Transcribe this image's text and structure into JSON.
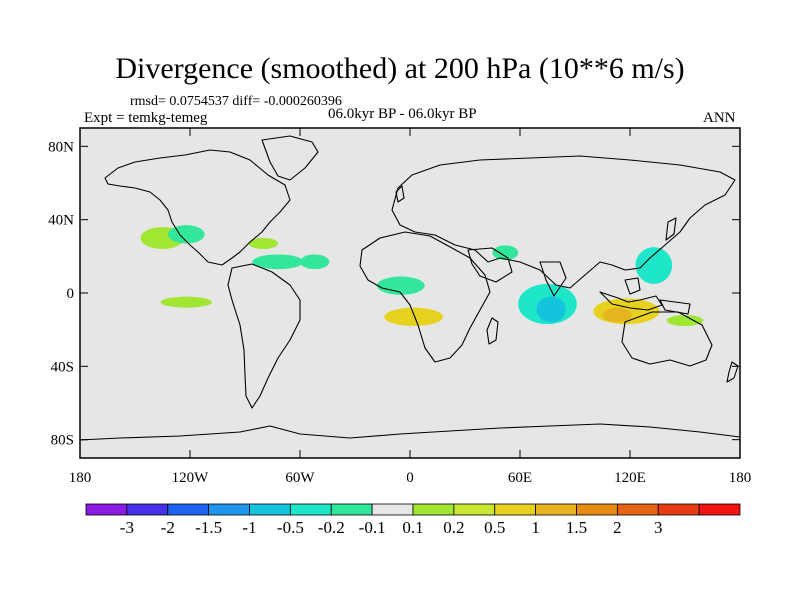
{
  "title": "Divergence (smoothed) at 200 hPa (10**6 m/s)",
  "stats": "rmsd= 0.0754537 diff= -0.000260396",
  "experiment": "Expt = temkg-temeg",
  "period": "06.0kyr BP - 06.0kyr BP",
  "season": "ANN",
  "axes": {
    "lat_ticks": [
      {
        "value": 80,
        "label": "80N"
      },
      {
        "value": 40,
        "label": "40N"
      },
      {
        "value": 0,
        "label": "0"
      },
      {
        "value": -40,
        "label": "40S"
      },
      {
        "value": -80,
        "label": "80S"
      }
    ],
    "lon_ticks": [
      {
        "value": -180,
        "label": "180"
      },
      {
        "value": -120,
        "label": "120W"
      },
      {
        "value": -60,
        "label": "60W"
      },
      {
        "value": 0,
        "label": "0"
      },
      {
        "value": 60,
        "label": "60E"
      },
      {
        "value": 120,
        "label": "120E"
      },
      {
        "value": 180,
        "label": "180"
      }
    ]
  },
  "colorbar": {
    "colors": [
      "#8a1be0",
      "#4632e6",
      "#1e64f0",
      "#1e96f0",
      "#14c3dc",
      "#1ee6c8",
      "#32e69b",
      "#e6e6e6",
      "#a0e632",
      "#c8e632",
      "#e6d21e",
      "#e6b41e",
      "#e68c14",
      "#e66414",
      "#e63c14",
      "#f01414"
    ],
    "labels": [
      "-3",
      "-2",
      "-1.5",
      "-1",
      "-0.5",
      "-0.2",
      "-0.1",
      "0.1",
      "0.2",
      "0.5",
      "1",
      "1.5",
      "2",
      "3"
    ]
  },
  "map": {
    "background_color": "#e6e6e6",
    "coastline_color": "#000000",
    "regions": [
      {
        "name": "n-pacific-positive",
        "level": "0.1",
        "color": "#a0e632",
        "lon": -135,
        "lat": 30,
        "rlon": 12,
        "rlat": 6
      },
      {
        "name": "n-pacific-negative",
        "level": "-0.1",
        "color": "#32e69b",
        "lon": -122,
        "lat": 32,
        "rlon": 10,
        "rlat": 5
      },
      {
        "name": "e-pacific-positive",
        "level": "0.1",
        "color": "#a0e632",
        "lon": -122,
        "lat": -5,
        "rlon": 14,
        "rlat": 3
      },
      {
        "name": "caribbean-negative",
        "level": "-0.1",
        "color": "#32e69b",
        "lon": -72,
        "lat": 17,
        "rlon": 14,
        "rlat": 4
      },
      {
        "name": "atlantic-negative",
        "level": "-0.1",
        "color": "#32e69b",
        "lon": -52,
        "lat": 17,
        "rlon": 8,
        "rlat": 4
      },
      {
        "name": "gulf-positive",
        "level": "0.1",
        "color": "#a0e632",
        "lon": -80,
        "lat": 27,
        "rlon": 8,
        "rlat": 3
      },
      {
        "name": "tropical-atlantic-negative",
        "level": "-0.1",
        "color": "#32e69b",
        "lon": -5,
        "lat": 4,
        "rlon": 13,
        "rlat": 5
      },
      {
        "name": "s-atlantic-positive",
        "level": "0.5",
        "color": "#e6d21e",
        "lon": 2,
        "lat": -13,
        "rlon": 16,
        "rlat": 5
      },
      {
        "name": "indian-ocean-negative",
        "level": "-0.2",
        "color": "#1ee6c8",
        "lon": 75,
        "lat": -6,
        "rlon": 16,
        "rlat": 11
      },
      {
        "name": "indian-ocean-core",
        "level": "-0.5",
        "color": "#14c3dc",
        "lon": 77,
        "lat": -9,
        "rlon": 8,
        "rlat": 7
      },
      {
        "name": "maritime-positive",
        "level": "0.5",
        "color": "#e6d21e",
        "lon": 118,
        "lat": -10,
        "rlon": 18,
        "rlat": 7
      },
      {
        "name": "maritime-core",
        "level": "1",
        "color": "#e6b41e",
        "lon": 113,
        "lat": -12,
        "rlon": 8,
        "rlat": 4
      },
      {
        "name": "w-pacific-negative",
        "level": "-0.2",
        "color": "#1ee6c8",
        "lon": 133,
        "lat": 15,
        "rlon": 10,
        "rlat": 10
      },
      {
        "name": "arabian-negative",
        "level": "-0.1",
        "color": "#32e69b",
        "lon": 52,
        "lat": 22,
        "rlon": 7,
        "rlat": 4
      },
      {
        "name": "s-pacific-positive",
        "level": "0.1",
        "color": "#a0e632",
        "lon": 150,
        "lat": -15,
        "rlon": 10,
        "rlat": 3
      }
    ]
  }
}
